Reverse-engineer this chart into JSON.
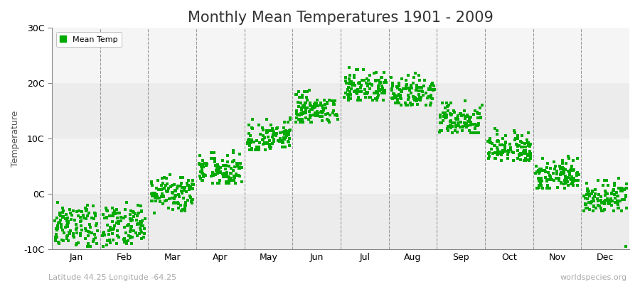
{
  "title": "Monthly Mean Temperatures 1901 - 2009",
  "ylabel": "Temperature",
  "xlabel": "",
  "ylim": [
    -10,
    30
  ],
  "yticks": [
    -10,
    0,
    10,
    20,
    30
  ],
  "ytick_labels": [
    "-10C",
    "0C",
    "10C",
    "20C",
    "30C"
  ],
  "months": [
    "Jan",
    "Feb",
    "Mar",
    "Apr",
    "May",
    "Jun",
    "Jul",
    "Aug",
    "Sep",
    "Oct",
    "Nov",
    "Dec"
  ],
  "scatter_color": "#00aa00",
  "bg_color": "#f5f5f5",
  "plot_bg_color": "#ffffff",
  "band_light": "#f0f0f0",
  "band_dark": "#e0e0e0",
  "title_fontsize": 15,
  "axis_label_fontsize": 9,
  "tick_label_fontsize": 9,
  "legend_label": "Mean Temp",
  "subtitle": "Latitude 44.25 Longitude -64.25",
  "watermark": "worldspecies.org",
  "mean_temps": {
    "Jan": [
      -3.5,
      -4.0,
      -4.5,
      -5.0,
      -5.5,
      -6.0,
      -6.5,
      -7.0,
      -7.5,
      -8.0,
      -8.5,
      -9.0,
      -9.5,
      -3.0,
      -2.5,
      -4.2,
      -5.3,
      -6.1,
      -7.2,
      -8.1,
      -4.8,
      -3.9,
      -5.6,
      -6.7,
      -7.8,
      -8.9,
      -4.1,
      -3.2,
      -5.0,
      -6.3,
      -7.1,
      -8.3,
      -4.4,
      -3.6,
      -5.8,
      -6.9,
      -7.6,
      -8.7,
      -4.3,
      -3.1,
      -5.1,
      -6.4,
      -7.3,
      -8.2,
      -4.5,
      -3.8,
      -5.9,
      -7.0,
      -4.0,
      -3.3,
      -5.4,
      -6.8,
      -7.9,
      -8.6,
      -4.2,
      -3.4,
      -5.2,
      -6.5,
      -7.4,
      -8.4,
      -4.6,
      -3.7,
      -6.0,
      -7.1,
      -7.7,
      -8.8,
      -4.7,
      -3.5,
      -5.7,
      -6.6,
      -7.5,
      -8.5,
      -4.9,
      -5.5,
      -6.2,
      -3.0,
      -2.0,
      -1.5,
      -2.8,
      -3.5,
      -4.3,
      -5.8,
      -6.9,
      -7.8,
      -4.4,
      -5.2,
      -6.6,
      -3.2,
      -2.2,
      -4.7,
      -3.7,
      -2.5,
      -4.0,
      -3.0,
      -9.5,
      -9.2,
      -8.9,
      -7.5,
      -8.3,
      -9.0,
      -7.8,
      -6.5,
      -5.0,
      -5.5,
      -4.5,
      -6.0,
      -3.8,
      -2.8,
      -7.0,
      -6.2,
      -4.8,
      -5.9,
      -7.3
    ],
    "Feb": [
      -4.0,
      -4.5,
      -5.0,
      -5.5,
      -6.0,
      -6.5,
      -7.0,
      -7.5,
      -8.0,
      -3.5,
      -3.0,
      -2.5,
      -4.2,
      -5.3,
      -6.1,
      -7.2,
      -8.1,
      -4.8,
      -3.9,
      -5.6,
      -6.7,
      -7.8,
      -8.9,
      -4.1,
      -3.2,
      -5.0,
      -6.3,
      -7.1,
      -8.3,
      -4.4,
      -3.6,
      -5.8,
      -6.9,
      -7.6,
      -8.7,
      -4.3,
      -3.1,
      -5.1,
      -6.4,
      -7.3,
      -8.2,
      -4.5,
      -3.8,
      -5.9,
      -7.0,
      -4.0,
      -3.3,
      -5.4,
      -6.8,
      -7.9,
      -8.6,
      -4.2,
      -3.4,
      -5.2,
      -6.5,
      -7.4,
      -8.4,
      -4.6,
      -3.7,
      -6.0,
      -7.1,
      -7.7,
      -8.8,
      -4.7,
      -3.5,
      -5.7,
      -6.6,
      -7.5,
      -8.5,
      -4.9,
      -5.5,
      -6.2,
      -3.0,
      -2.0,
      -1.5,
      -2.8,
      -3.5,
      -4.3,
      -5.8,
      -6.9,
      -7.8,
      -4.4,
      -5.2,
      -6.6,
      -3.2,
      -2.2,
      -4.7,
      -3.7,
      -2.5,
      -4.0,
      -3.0,
      -5.5,
      -9.5,
      -9.2,
      -8.9,
      -7.5,
      -8.3,
      -9.0,
      -7.8,
      -6.5,
      -5.0,
      -4.1,
      -3.9,
      -2.8,
      -3.6,
      -4.8,
      -7.2,
      -6.0,
      -5.8,
      -2.9,
      -7.8
    ],
    "Mar": [
      0.0,
      -0.5,
      -1.0,
      0.5,
      1.0,
      -1.5,
      -2.0,
      1.5,
      -0.3,
      0.3,
      -0.8,
      1.2,
      -1.8,
      2.0,
      -2.5,
      0.8,
      -1.2,
      1.8,
      -0.6,
      0.6,
      -1.3,
      1.3,
      -0.9,
      0.9,
      -1.6,
      1.6,
      -0.4,
      0.4,
      -1.1,
      1.1,
      -0.7,
      0.7,
      -1.4,
      1.4,
      -0.2,
      0.2,
      -1.7,
      1.7,
      -0.1,
      0.1,
      2.5,
      -2.8,
      3.0,
      -3.0,
      2.8,
      -0.5,
      -1.5,
      -2.0,
      1.5,
      -0.3,
      0.3,
      -0.8,
      1.2,
      -1.8,
      2.0,
      -2.5,
      0.8,
      -1.2,
      1.8,
      -0.6,
      0.6,
      -1.3,
      1.3,
      -0.9,
      0.9,
      -1.6,
      1.6,
      -0.4,
      0.4,
      -1.1,
      1.1,
      -0.7,
      0.7,
      -1.4,
      1.4,
      -0.2,
      0.2,
      -1.7,
      1.7,
      -0.1,
      0.1,
      2.5,
      -2.8,
      3.0,
      -3.0,
      2.8,
      3.5,
      -3.5,
      0.0,
      1.0,
      2.0,
      -2.0,
      1.0,
      2.5,
      -0.5,
      1.5,
      -1.5,
      0.5,
      -0.5,
      2.0,
      -1.0,
      3.0,
      -0.5,
      1.0,
      -2.5,
      0.8,
      1.5,
      -0.8,
      2.2,
      -1.2,
      0.0
    ],
    "Apr": [
      4.0,
      3.5,
      3.0,
      4.5,
      5.0,
      2.5,
      2.0,
      5.5,
      3.8,
      4.3,
      3.2,
      5.2,
      2.8,
      6.0,
      2.2,
      4.8,
      3.6,
      5.8,
      3.4,
      4.6,
      3.3,
      5.3,
      3.7,
      4.7,
      3.1,
      5.1,
      3.9,
      4.9,
      3.6,
      5.6,
      3.5,
      5.5,
      3.4,
      5.4,
      3.9,
      4.9,
      3.2,
      5.2,
      3.1,
      4.1,
      6.5,
      2.0,
      7.0,
      2.5,
      7.5,
      3.5,
      2.5,
      2.0,
      5.5,
      3.8,
      4.3,
      3.2,
      5.2,
      2.8,
      6.0,
      2.2,
      4.8,
      3.6,
      5.8,
      3.4,
      4.6,
      3.3,
      5.3,
      3.7,
      4.7,
      3.1,
      5.1,
      3.9,
      4.9,
      3.6,
      5.6,
      3.5,
      5.5,
      3.4,
      5.4,
      3.9,
      4.9,
      3.2,
      5.2,
      3.1,
      4.1,
      6.5,
      2.0,
      7.0,
      2.5,
      7.5,
      7.8,
      2.5,
      4.0,
      5.0,
      6.0,
      2.0,
      5.0,
      7.5,
      3.5,
      5.5,
      2.5,
      4.5,
      3.5,
      6.0,
      2.0,
      4.5,
      3.0,
      5.0,
      2.5,
      3.8,
      4.8,
      5.8,
      6.5,
      3.2,
      7.2
    ],
    "May": [
      10.0,
      9.5,
      9.0,
      10.5,
      11.0,
      8.5,
      8.0,
      11.5,
      9.8,
      10.3,
      9.2,
      11.2,
      8.8,
      12.0,
      8.2,
      10.8,
      9.6,
      11.8,
      9.4,
      10.6,
      9.3,
      11.3,
      9.7,
      10.7,
      9.1,
      11.1,
      9.9,
      10.9,
      9.6,
      11.6,
      9.5,
      11.5,
      9.4,
      11.4,
      9.9,
      10.9,
      9.2,
      11.2,
      9.1,
      10.1,
      12.5,
      8.0,
      13.0,
      8.5,
      13.5,
      9.5,
      8.5,
      8.0,
      11.5,
      9.8,
      10.3,
      9.2,
      11.2,
      8.8,
      12.0,
      8.2,
      10.8,
      9.6,
      11.8,
      9.4,
      10.6,
      9.3,
      11.3,
      9.7,
      10.7,
      9.1,
      11.1,
      9.9,
      10.9,
      9.6,
      11.6,
      9.5,
      11.5,
      9.4,
      11.4,
      9.9,
      10.9,
      9.2,
      11.2,
      9.1,
      10.1,
      12.5,
      8.0,
      13.0,
      8.5,
      13.5,
      13.8,
      8.5,
      10.0,
      11.0,
      12.0,
      8.0,
      11.0,
      13.5,
      9.5,
      11.5,
      8.5,
      10.5,
      9.5,
      12.0,
      8.0,
      10.5,
      9.0,
      11.0,
      8.5,
      10.2,
      11.5,
      12.5,
      10.8,
      9.3,
      11.8
    ],
    "Jun": [
      15.0,
      14.5,
      14.0,
      15.5,
      16.0,
      13.5,
      13.0,
      16.5,
      14.8,
      15.3,
      14.2,
      16.2,
      13.8,
      17.0,
      13.2,
      15.8,
      14.6,
      16.8,
      14.4,
      15.6,
      14.3,
      16.3,
      14.7,
      15.7,
      14.1,
      16.1,
      14.9,
      15.9,
      14.6,
      16.6,
      14.5,
      16.5,
      14.4,
      16.4,
      14.9,
      15.9,
      14.2,
      16.2,
      14.1,
      15.1,
      17.5,
      13.0,
      18.0,
      13.5,
      18.5,
      14.5,
      13.5,
      13.0,
      16.5,
      14.8,
      15.3,
      14.2,
      16.2,
      13.8,
      17.0,
      13.2,
      15.8,
      14.6,
      16.8,
      14.4,
      15.6,
      14.3,
      16.3,
      14.7,
      15.7,
      14.1,
      16.1,
      14.9,
      15.9,
      14.6,
      16.6,
      14.5,
      16.5,
      14.4,
      16.4,
      14.9,
      15.9,
      14.2,
      16.2,
      14.1,
      15.1,
      17.5,
      13.0,
      18.0,
      13.5,
      18.5,
      18.8,
      13.5,
      15.0,
      16.0,
      17.0,
      13.0,
      16.0,
      18.5,
      14.5,
      16.5,
      13.5,
      15.5,
      14.5,
      17.0,
      13.0,
      15.5,
      14.0,
      16.0,
      13.5,
      14.8,
      16.5,
      17.5,
      15.2,
      13.8,
      17.8
    ],
    "Jul": [
      19.0,
      18.5,
      18.0,
      19.5,
      20.0,
      17.5,
      17.0,
      20.5,
      18.8,
      19.3,
      18.2,
      20.2,
      17.8,
      21.0,
      17.2,
      19.8,
      18.6,
      20.8,
      18.4,
      19.6,
      18.3,
      20.3,
      18.7,
      19.7,
      18.1,
      20.1,
      18.9,
      19.9,
      18.6,
      20.6,
      18.5,
      20.5,
      18.4,
      20.4,
      18.9,
      19.9,
      18.2,
      20.2,
      18.1,
      19.1,
      21.5,
      17.0,
      22.0,
      17.5,
      22.5,
      18.5,
      17.5,
      17.0,
      20.5,
      18.8,
      19.3,
      18.2,
      20.2,
      17.8,
      21.0,
      17.2,
      19.8,
      18.6,
      20.8,
      18.4,
      19.6,
      18.3,
      20.3,
      18.7,
      19.7,
      18.1,
      20.1,
      18.9,
      19.9,
      18.6,
      20.6,
      18.5,
      20.5,
      18.4,
      20.4,
      18.9,
      19.9,
      18.2,
      20.2,
      18.1,
      19.1,
      21.5,
      17.0,
      22.0,
      17.5,
      22.5,
      22.8,
      17.5,
      19.0,
      20.0,
      21.0,
      17.0,
      20.0,
      22.5,
      18.5,
      20.5,
      17.5,
      19.5,
      18.5,
      21.0,
      17.0,
      19.5,
      18.0,
      20.0,
      17.5,
      19.2,
      20.5,
      21.5,
      19.8,
      18.3,
      21.8
    ],
    "Aug": [
      18.0,
      17.5,
      17.0,
      18.5,
      19.0,
      16.5,
      16.0,
      19.5,
      17.8,
      18.3,
      17.2,
      19.2,
      16.8,
      20.0,
      16.2,
      18.8,
      17.6,
      19.8,
      17.4,
      18.6,
      17.3,
      19.3,
      17.7,
      18.7,
      17.1,
      19.1,
      17.9,
      18.9,
      17.6,
      19.6,
      17.5,
      19.5,
      17.4,
      19.4,
      17.9,
      18.9,
      17.2,
      19.2,
      17.1,
      18.1,
      20.5,
      16.0,
      21.0,
      16.5,
      21.5,
      17.5,
      16.5,
      16.0,
      19.5,
      17.8,
      18.3,
      17.2,
      19.2,
      16.8,
      20.0,
      16.2,
      18.8,
      17.6,
      19.8,
      17.4,
      18.6,
      17.3,
      19.3,
      17.7,
      18.7,
      17.1,
      19.1,
      17.9,
      18.9,
      17.6,
      19.6,
      17.5,
      19.5,
      17.4,
      19.4,
      17.9,
      18.9,
      17.2,
      19.2,
      17.1,
      18.1,
      20.5,
      16.0,
      21.0,
      16.5,
      21.5,
      21.8,
      16.5,
      18.0,
      19.0,
      20.0,
      16.0,
      19.0,
      21.5,
      17.5,
      19.5,
      16.5,
      18.5,
      17.5,
      20.0,
      16.0,
      18.5,
      17.0,
      19.0,
      16.5,
      18.2,
      19.5,
      20.5,
      18.8,
      17.3,
      20.8
    ],
    "Sep": [
      13.0,
      12.5,
      12.0,
      13.5,
      14.0,
      11.5,
      11.0,
      14.5,
      12.8,
      13.3,
      12.2,
      14.2,
      11.8,
      15.0,
      11.2,
      13.8,
      12.6,
      14.8,
      12.4,
      13.6,
      12.3,
      14.3,
      12.7,
      13.7,
      12.1,
      14.1,
      12.9,
      13.9,
      12.6,
      14.6,
      12.5,
      14.5,
      12.4,
      14.4,
      12.9,
      13.9,
      12.2,
      14.2,
      12.1,
      13.1,
      15.5,
      11.0,
      16.0,
      11.5,
      16.5,
      12.5,
      11.5,
      11.0,
      14.5,
      12.8,
      13.3,
      12.2,
      14.2,
      11.8,
      15.0,
      11.2,
      13.8,
      12.6,
      14.8,
      12.4,
      13.6,
      12.3,
      14.3,
      12.7,
      13.7,
      12.1,
      14.1,
      12.9,
      13.9,
      12.6,
      14.6,
      12.5,
      14.5,
      12.4,
      14.4,
      12.9,
      13.9,
      12.2,
      14.2,
      12.1,
      13.1,
      15.5,
      11.0,
      16.0,
      11.5,
      16.5,
      16.8,
      11.5,
      13.0,
      14.0,
      15.0,
      11.0,
      14.0,
      16.5,
      12.5,
      14.5,
      11.5,
      13.5,
      12.5,
      15.0,
      11.0,
      13.5,
      12.0,
      14.0,
      11.5,
      13.2,
      14.5,
      15.5,
      13.8,
      12.3,
      15.8
    ],
    "Oct": [
      8.0,
      7.5,
      7.0,
      8.5,
      9.0,
      6.5,
      6.0,
      9.5,
      7.8,
      8.3,
      7.2,
      9.2,
      6.8,
      10.0,
      6.2,
      8.8,
      7.6,
      9.8,
      7.4,
      8.6,
      7.3,
      9.3,
      7.7,
      8.7,
      7.1,
      9.1,
      7.9,
      8.9,
      7.6,
      9.6,
      7.5,
      9.5,
      7.4,
      9.4,
      7.9,
      8.9,
      7.2,
      9.2,
      7.1,
      8.1,
      10.5,
      6.0,
      11.0,
      6.5,
      11.5,
      7.5,
      6.5,
      6.0,
      9.5,
      7.8,
      8.3,
      7.2,
      9.2,
      6.8,
      10.0,
      6.2,
      8.8,
      7.6,
      9.8,
      7.4,
      8.6,
      7.3,
      9.3,
      7.7,
      8.7,
      7.1,
      9.1,
      7.9,
      8.9,
      7.6,
      9.6,
      7.5,
      9.5,
      7.4,
      9.4,
      7.9,
      8.9,
      7.2,
      9.2,
      7.1,
      8.1,
      10.5,
      6.0,
      11.0,
      6.5,
      11.5,
      11.8,
      6.5,
      8.0,
      9.0,
      10.0,
      6.0,
      9.0,
      11.5,
      7.5,
      9.5,
      6.5,
      8.5,
      7.5,
      10.0,
      6.0,
      8.5,
      7.0,
      9.0,
      6.5,
      8.2,
      9.5,
      10.5,
      8.8,
      7.3,
      10.8
    ],
    "Nov": [
      3.0,
      2.5,
      2.0,
      3.5,
      4.0,
      1.5,
      1.0,
      4.5,
      2.8,
      3.3,
      2.2,
      4.2,
      1.8,
      5.0,
      1.2,
      3.8,
      2.6,
      4.8,
      2.4,
      3.6,
      2.3,
      4.3,
      2.7,
      3.7,
      2.1,
      4.1,
      2.9,
      3.9,
      2.6,
      4.6,
      2.5,
      4.5,
      2.4,
      4.4,
      2.9,
      3.9,
      2.2,
      4.2,
      2.1,
      3.1,
      5.5,
      1.0,
      6.0,
      1.5,
      6.5,
      2.5,
      1.5,
      1.0,
      4.5,
      2.8,
      3.3,
      2.2,
      4.2,
      1.8,
      5.0,
      1.2,
      3.8,
      2.6,
      4.8,
      2.4,
      3.6,
      2.3,
      4.3,
      2.7,
      3.7,
      2.1,
      4.1,
      2.9,
      3.9,
      2.6,
      4.6,
      2.5,
      4.5,
      2.4,
      4.4,
      2.9,
      3.9,
      2.2,
      4.2,
      2.1,
      3.1,
      5.5,
      1.0,
      6.0,
      1.5,
      6.5,
      6.8,
      1.5,
      3.0,
      4.0,
      5.0,
      1.0,
      4.0,
      6.5,
      2.5,
      4.5,
      1.5,
      3.5,
      2.5,
      5.0,
      1.0,
      3.5,
      2.0,
      4.0,
      1.5,
      3.2,
      4.5,
      5.5,
      3.8,
      2.3,
      5.8
    ],
    "Dec": [
      -1.0,
      -1.5,
      -2.0,
      -0.5,
      0.0,
      -2.5,
      -3.0,
      0.5,
      -1.2,
      -0.7,
      -1.8,
      0.2,
      -2.2,
      1.0,
      -2.8,
      -0.2,
      -1.4,
      0.8,
      -1.6,
      -0.4,
      -1.3,
      0.3,
      -0.9,
      -0.1,
      -1.9,
      0.9,
      -1.1,
      -0.3,
      -1.4,
      0.6,
      -1.5,
      0.5,
      -1.6,
      0.4,
      -1.1,
      -0.1,
      -1.8,
      0.8,
      -1.9,
      -0.9,
      1.5,
      -3.0,
      2.0,
      -2.5,
      2.5,
      -1.5,
      -2.5,
      -3.0,
      0.5,
      -1.2,
      -0.7,
      -1.8,
      0.2,
      -2.2,
      1.0,
      -2.8,
      -0.2,
      -1.4,
      0.8,
      -1.6,
      -0.4,
      -1.3,
      0.3,
      -0.9,
      -0.1,
      -1.9,
      0.9,
      -1.1,
      -0.3,
      -1.4,
      0.6,
      -1.5,
      0.5,
      -1.6,
      0.4,
      -1.1,
      -0.1,
      -1.8,
      0.8,
      -1.9,
      -0.9,
      1.5,
      -3.0,
      2.0,
      -2.5,
      2.5,
      2.8,
      -2.5,
      -1.0,
      0.0,
      1.0,
      -3.0,
      0.0,
      2.5,
      -1.5,
      0.5,
      -2.5,
      -0.5,
      -1.5,
      1.0,
      -3.0,
      -0.5,
      -2.0,
      0.0,
      -2.5,
      -1.2,
      0.5,
      1.5,
      -0.8,
      -2.3,
      1.8,
      -9.5
    ]
  }
}
